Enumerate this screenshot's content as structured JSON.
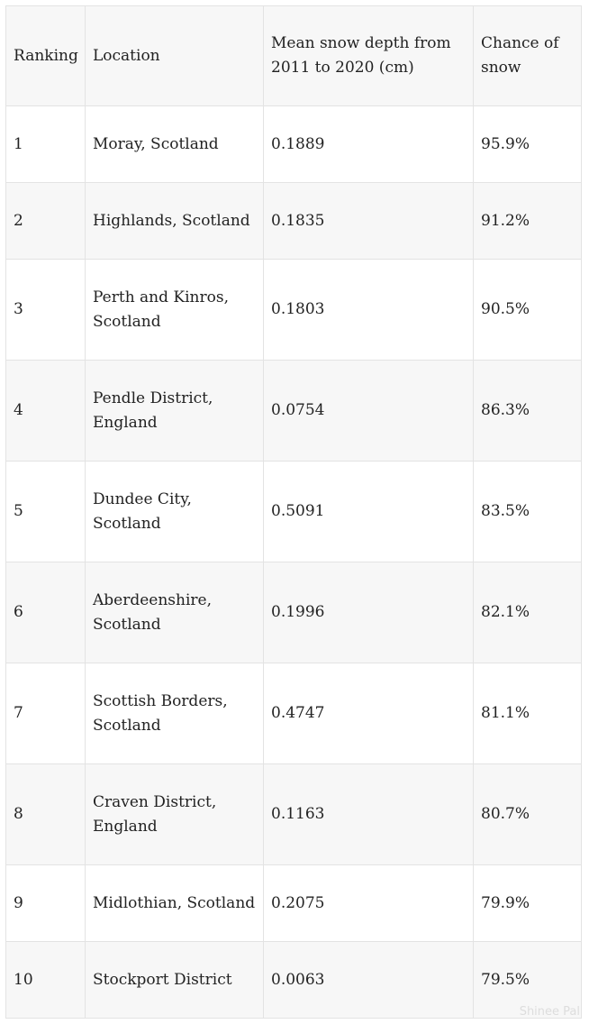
{
  "table": {
    "headers": [
      "Ranking",
      "Location",
      "Mean snow depth from 2011 to 2020 (cm)",
      "Chance of snow"
    ],
    "rows": [
      {
        "rank": "1",
        "location": "Moray, Scotland",
        "depth": "0.1889",
        "chance": "95.9%"
      },
      {
        "rank": "2",
        "location": "Highlands, Scotland",
        "depth": "0.1835",
        "chance": "91.2%"
      },
      {
        "rank": "3",
        "location": "Perth and Kinros, Scotland",
        "depth": "0.1803",
        "chance": "90.5%"
      },
      {
        "rank": "4",
        "location": "Pendle District, England",
        "depth": "0.0754",
        "chance": "86.3%"
      },
      {
        "rank": "5",
        "location": "Dundee City, Scotland",
        "depth": "0.5091",
        "chance": "83.5%"
      },
      {
        "rank": "6",
        "location": "Aberdeenshire, Scotland",
        "depth": "0.1996",
        "chance": "82.1%"
      },
      {
        "rank": "7",
        "location": "Scottish Borders, Scotland",
        "depth": "0.4747",
        "chance": "81.1%"
      },
      {
        "rank": "8",
        "location": "Craven District, England",
        "depth": "0.1163",
        "chance": "80.7%"
      },
      {
        "rank": "9",
        "location": "Midlothian, Scotland",
        "depth": "0.2075",
        "chance": "79.9%"
      },
      {
        "rank": "10",
        "location": "Stockport District",
        "depth": "0.0063",
        "chance": "79.5%"
      }
    ]
  },
  "watermark": "Shinee Pal"
}
